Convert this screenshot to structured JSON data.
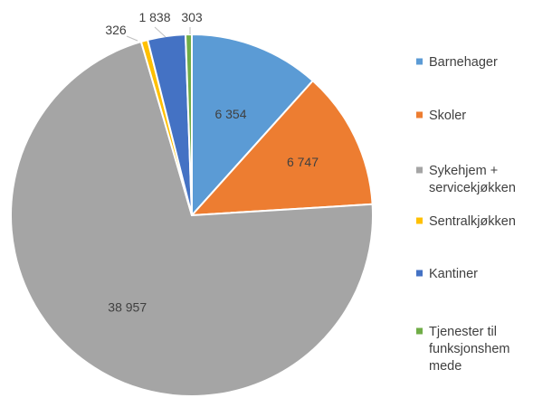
{
  "chart_data": {
    "type": "pie",
    "title": "",
    "categories": [
      "Barnehager",
      "Skoler",
      "Sykehjem + servicekjøkken",
      "Sentralkjøkken",
      "Kantiner",
      "Tjenester til funksjonshemmede"
    ],
    "values": [
      6354,
      6747,
      38957,
      326,
      1838,
      303
    ],
    "value_labels": [
      "6 354",
      "6 747",
      "38 957",
      "326",
      "1 838",
      "303"
    ],
    "legend_lines": [
      [
        "Barnehager"
      ],
      [
        "Skoler"
      ],
      [
        "Sykehjem +",
        "servicekjøkken"
      ],
      [
        "Sentralkjøkken"
      ],
      [
        "Kantiner"
      ],
      [
        "Tjenester til",
        "funksjonshem",
        "mede"
      ]
    ],
    "colors": [
      "#5b9bd5",
      "#ed7d31",
      "#a5a5a5",
      "#ffc000",
      "#4472c4",
      "#70ad47"
    ],
    "legend_position": "right",
    "start_angle": "12 o'clock, clockwise"
  }
}
